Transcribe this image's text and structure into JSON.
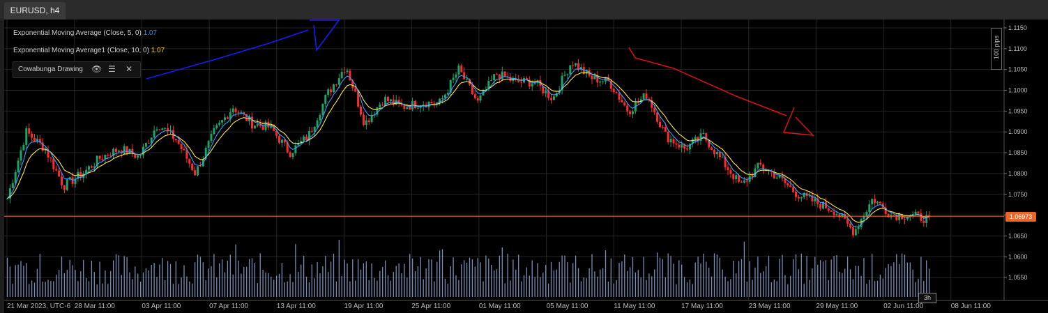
{
  "tab": {
    "title": "EURUSD, h4"
  },
  "legend": {
    "ema5_label": "Exponential Moving Average (Close, 5, 0)",
    "ema5_value": "1.07",
    "ema10_label": "Exponential Moving Average1 (Close, 10, 0)",
    "ema10_value": "1.07",
    "drawing_label": "Cowabunga Drawing"
  },
  "pips_label": "100 pips",
  "current_price": "1.06973",
  "timeframe_tag": "3h",
  "colors": {
    "background": "#000000",
    "bull": "#1fa36a",
    "bear": "#ff2a2a",
    "ema5": "#3aa0ff",
    "ema10": "#ffe84a",
    "volume": "#8fa8d8",
    "price_line": "#e8662a",
    "annotation_up": "#1a1aff",
    "annotation_down": "#e01010"
  },
  "chart_data": {
    "type": "candlestick",
    "symbol": "EURUSD",
    "timeframe": "h4",
    "ylim": [
      1.05,
      1.116
    ],
    "y_ticks": [
      "1.1150",
      "1.1100",
      "1.1050",
      "1.1000",
      "1.0950",
      "1.0900",
      "1.0850",
      "1.0800",
      "1.0750",
      "1.0700",
      "1.0650",
      "1.0600",
      "1.0550"
    ],
    "x_ticks": [
      "21 Mar 2023, UTC-6",
      "28 Mar 11:00",
      "03 Apr 11:00",
      "07 Apr 11:00",
      "13 Apr 11:00",
      "19 Apr 11:00",
      "25 Apr 11:00",
      "01 May 11:00",
      "05 May 11:00",
      "11 May 11:00",
      "17 May 11:00",
      "23 May 11:00",
      "29 May 11:00",
      "02 Jun 11:00",
      "08 Jun 11:00"
    ],
    "price_path": [
      1.074,
      1.09,
      1.086,
      1.077,
      1.08,
      1.084,
      1.086,
      1.084,
      1.092,
      1.088,
      1.08,
      1.09,
      1.096,
      1.092,
      1.091,
      1.085,
      1.089,
      1.099,
      1.106,
      1.092,
      1.098,
      1.096,
      1.097,
      1.097,
      1.105,
      1.097,
      1.104,
      1.102,
      1.102,
      1.098,
      1.107,
      1.103,
      1.102,
      1.095,
      1.099,
      1.089,
      1.086,
      1.089,
      1.083,
      1.077,
      1.082,
      1.079,
      1.075,
      1.073,
      1.071,
      1.066,
      1.074,
      1.07,
      1.07,
      1.069
    ],
    "current_price": 1.06973,
    "annotations": [
      "blue up-trend arrow (left)",
      "red down-trend arrow (right)"
    ]
  }
}
